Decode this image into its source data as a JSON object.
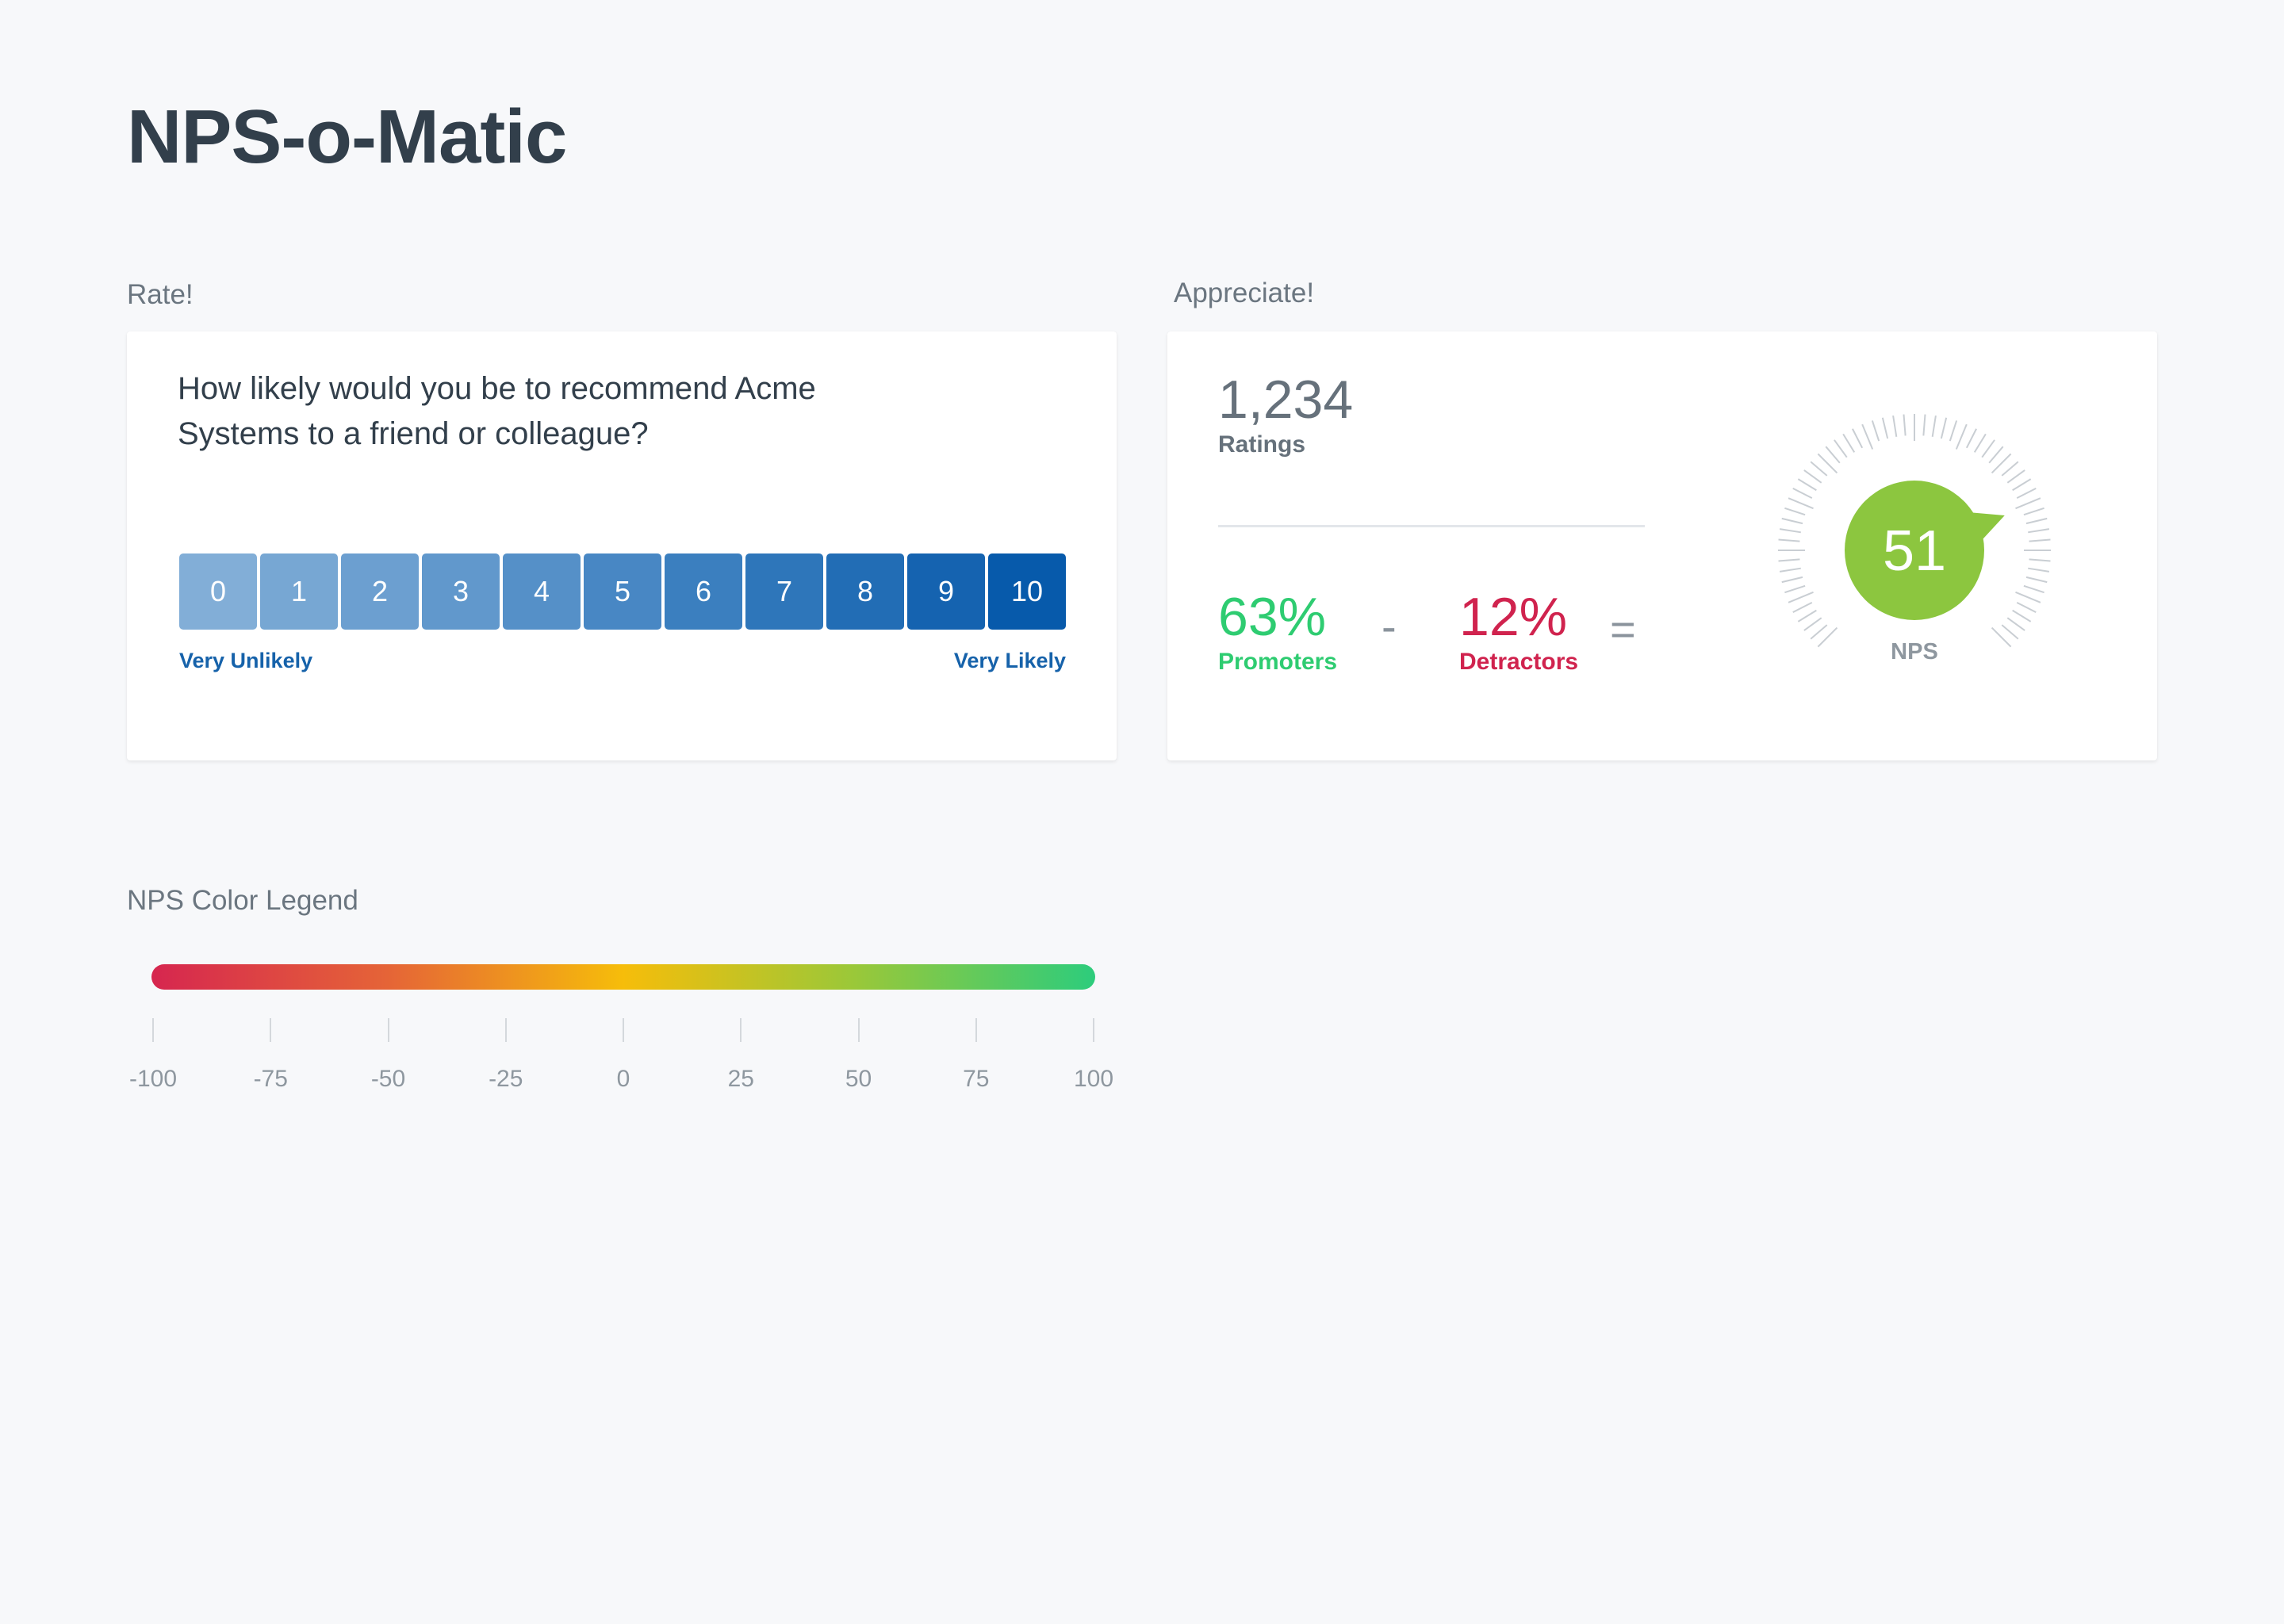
{
  "app": {
    "title": "NPS-o-Matic"
  },
  "rate": {
    "section_label": "Rate!",
    "question": "How likely would you be to recommend Acme Systems to a friend or colleague?",
    "scale": [
      {
        "label": "0",
        "color": "#82aed7"
      },
      {
        "label": "1",
        "color": "#77a7d3"
      },
      {
        "label": "2",
        "color": "#6c9fd0"
      },
      {
        "label": "3",
        "color": "#6198cc"
      },
      {
        "label": "4",
        "color": "#5590c8"
      },
      {
        "label": "5",
        "color": "#4887c4"
      },
      {
        "label": "6",
        "color": "#3b7fbf"
      },
      {
        "label": "7",
        "color": "#2e76ba"
      },
      {
        "label": "8",
        "color": "#226db5"
      },
      {
        "label": "9",
        "color": "#1563b0"
      },
      {
        "label": "10",
        "color": "#075aab"
      }
    ],
    "low_label": "Very Unlikely",
    "high_label": "Very Likely"
  },
  "appreciate": {
    "section_label": "Appreciate!",
    "ratings_count": "1,234",
    "ratings_label": "Ratings",
    "promoters_value": "63%",
    "promoters_label": "Promoters",
    "minus": "-",
    "detractors_value": "12%",
    "detractors_label": "Detractors",
    "equals": "=",
    "nps_value": "51",
    "nps_label": "NPS",
    "nps_color": "#8cc63f",
    "promoter_color": "#2ecc71",
    "detractor_color": "#d0234e"
  },
  "legend": {
    "title": "NPS Color Legend",
    "ticks": [
      "-100",
      "-75",
      "-50",
      "-25",
      "0",
      "25",
      "50",
      "75",
      "100"
    ]
  }
}
